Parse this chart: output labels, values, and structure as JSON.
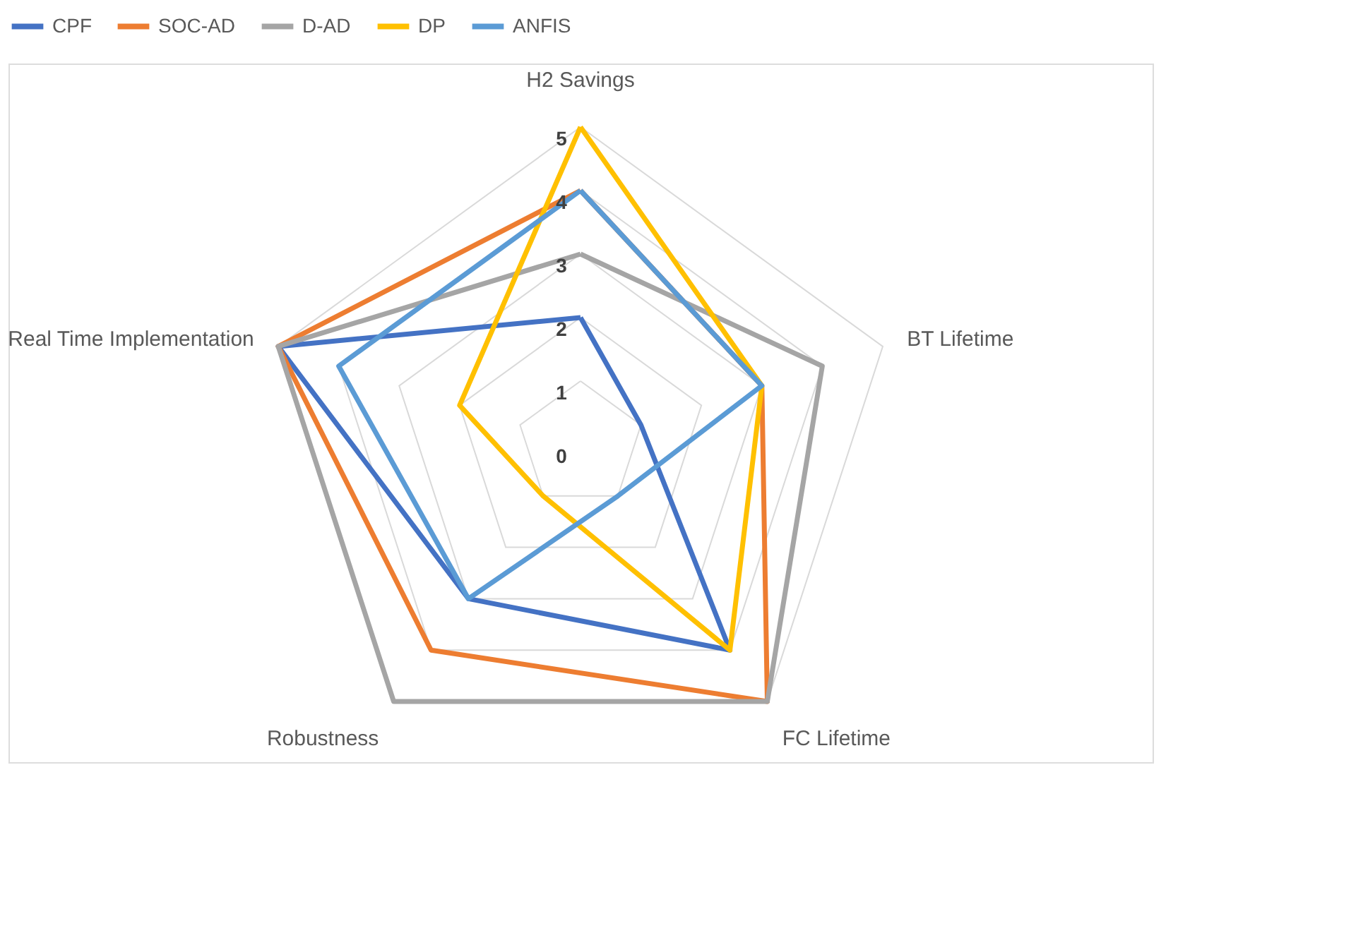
{
  "chart_data": {
    "type": "radar",
    "categories": [
      "H2 Savings",
      "BT Lifetime",
      "FC Lifetime",
      "Robustness",
      "Real Time Implementation"
    ],
    "series": [
      {
        "name": "CPF",
        "color": "#4472c4",
        "values": [
          2,
          1,
          4,
          3,
          5
        ]
      },
      {
        "name": "SOC-AD",
        "color": "#ed7d31",
        "values": [
          4,
          3,
          5,
          4,
          5
        ]
      },
      {
        "name": "D-AD",
        "color": "#a5a5a5",
        "values": [
          3,
          4,
          5,
          5,
          5
        ]
      },
      {
        "name": "DP",
        "color": "#ffc000",
        "values": [
          5,
          3,
          4,
          1,
          2
        ]
      },
      {
        "name": "ANFIS",
        "color": "#5b9bd5",
        "values": [
          4,
          3,
          1,
          3,
          4
        ]
      }
    ],
    "ylim": [
      0,
      5
    ],
    "yticks": [
      0,
      1,
      2,
      3,
      4,
      5
    ],
    "grid": true,
    "legend": "top"
  }
}
